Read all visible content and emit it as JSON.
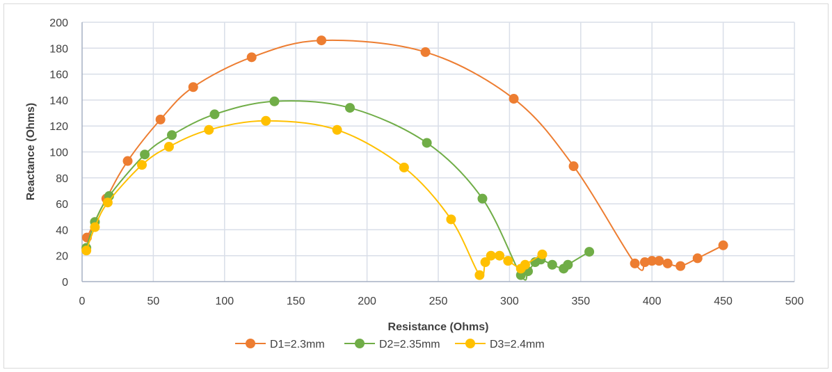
{
  "chart_data": {
    "type": "scatter",
    "xlabel": "Resistance (Ohms)",
    "ylabel": "Reactance (Ohms)",
    "xlim": [
      0,
      500
    ],
    "ylim": [
      0,
      200
    ],
    "xticks": [
      0,
      50,
      100,
      150,
      200,
      250,
      300,
      350,
      400,
      450,
      500
    ],
    "yticks": [
      0,
      20,
      40,
      60,
      80,
      100,
      120,
      140,
      160,
      180,
      200
    ],
    "grid": true,
    "legend": "bottom",
    "smooth_lines": true,
    "series": [
      {
        "name": "D1=2.3mm",
        "color": "#ED7D31",
        "x": [
          3.4,
          17,
          32,
          55,
          78,
          119,
          168,
          241,
          303,
          345,
          388,
          395,
          400,
          405,
          411,
          420,
          432,
          450
        ],
        "y": [
          34,
          64,
          93,
          125,
          150,
          173,
          186,
          177,
          141,
          89,
          14,
          15,
          16,
          16,
          14,
          12,
          18,
          28
        ]
      },
      {
        "name": "D2=2.35mm",
        "color": "#70AD47",
        "x": [
          3,
          9,
          19,
          44,
          63,
          93,
          135,
          188,
          242,
          281,
          308,
          313,
          318,
          322,
          330,
          338,
          341,
          356
        ],
        "y": [
          26,
          46,
          66,
          98,
          113,
          129,
          139,
          134,
          107,
          64,
          5,
          8,
          15,
          17,
          13,
          10,
          13,
          23
        ]
      },
      {
        "name": "D3=2.4mm",
        "color": "#FFC000",
        "x": [
          3,
          9,
          18,
          42,
          61,
          89,
          129,
          179,
          226,
          259,
          279,
          283,
          287,
          293,
          299,
          308,
          311,
          323
        ],
        "y": [
          24,
          42,
          61,
          90,
          104,
          117,
          124,
          117,
          88,
          48,
          5,
          15,
          20,
          20,
          16,
          10,
          13,
          21
        ]
      }
    ]
  }
}
